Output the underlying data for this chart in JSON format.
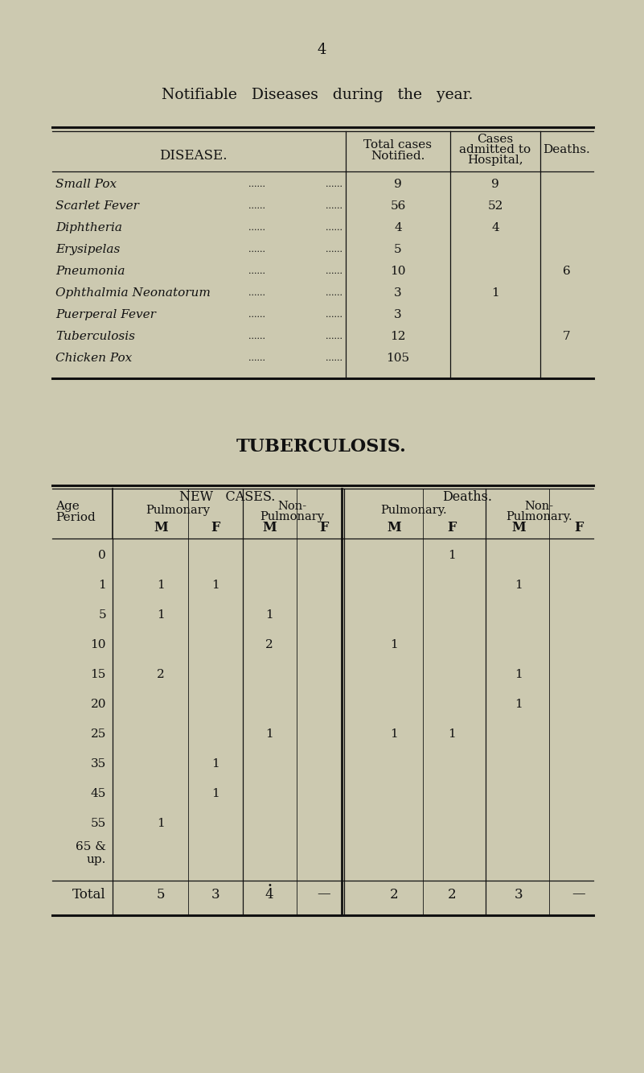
{
  "bg_color": "#ccc9b0",
  "page_num": "4",
  "title1": "Notifiable   Diseases   during   the   year.",
  "table1_rows": [
    [
      "Small Pox",
      "9",
      "9",
      ""
    ],
    [
      "Scarlet Fever",
      "56",
      "52",
      ""
    ],
    [
      "Diphtheria",
      "4",
      "4",
      ""
    ],
    [
      "Erysipelas",
      "5",
      "",
      ""
    ],
    [
      "Pneumonia",
      "10",
      "",
      "6"
    ],
    [
      "Ophthalmia Neonatorum",
      "3",
      "1",
      ""
    ],
    [
      "Puerperal Fever",
      "3",
      "",
      ""
    ],
    [
      "Tuberculosis",
      "12",
      "",
      "7"
    ],
    [
      "Chicken Pox",
      "105",
      "",
      ""
    ]
  ],
  "title2": "TUBERCULOSIS.",
  "age_periods": [
    "0",
    "1",
    "5",
    "10",
    "15",
    "20",
    "25",
    "35",
    "45",
    "55",
    "65 &\nup."
  ],
  "table2_data": {
    "new_pulm_M": [
      "",
      "1",
      "1",
      "",
      "2",
      "",
      "",
      "",
      "",
      "1",
      ""
    ],
    "new_pulm_F": [
      "",
      "1",
      "",
      "",
      "",
      "",
      "",
      "1",
      "1",
      "",
      ""
    ],
    "new_nonpulm_M": [
      "",
      "",
      "1",
      "2",
      "",
      "",
      "1",
      "",
      "",
      "",
      ""
    ],
    "new_nonpulm_F": [
      "",
      "",
      "",
      "",
      "",
      "",
      "",
      "",
      "",
      "",
      ""
    ],
    "death_pulm_M": [
      "",
      "",
      "",
      "1",
      "",
      "",
      "1",
      "",
      "",
      "",
      ""
    ],
    "death_pulm_F": [
      "1",
      "",
      "",
      "",
      "",
      "",
      "1",
      "",
      "",
      "",
      ""
    ],
    "death_nonpulm_M": [
      "",
      "1",
      "",
      "",
      "1",
      "1",
      "",
      "",
      "",
      "",
      ""
    ],
    "death_nonpulm_F": [
      "",
      "",
      "",
      "",
      "",
      "",
      "",
      "",
      "",
      "",
      ""
    ]
  },
  "table2_totals": {
    "new_pulm_M": "5",
    "new_pulm_F": "3",
    "new_nonpulm_M": "4",
    "new_nonpulm_F": "—",
    "death_pulm_M": "2",
    "death_pulm_F": "2",
    "death_nonpulm_M": "3",
    "death_nonpulm_F": "—"
  }
}
